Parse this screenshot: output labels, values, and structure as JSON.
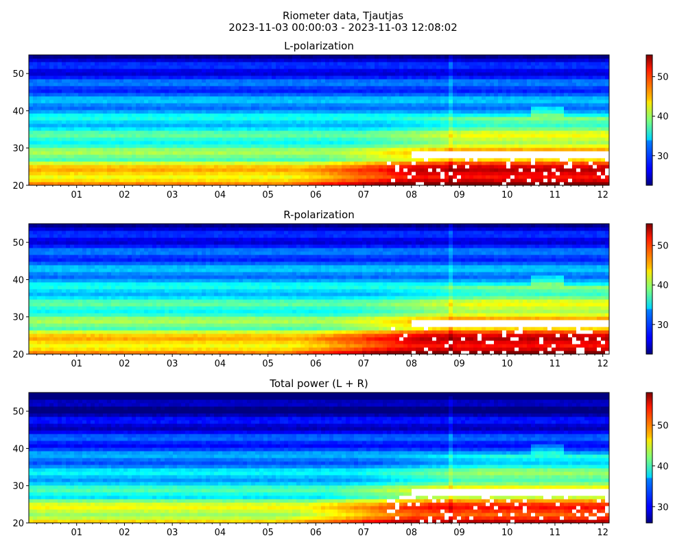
{
  "figure": {
    "title_line1": "Riometer data, Tjautjas",
    "title_line2": "2023-11-03 00:00:03 - 2023-11-03 12:08:02"
  },
  "chart_data": [
    {
      "type": "heatmap",
      "title": "L-polarization",
      "xlabel": "",
      "ylabel": "",
      "xlim": [
        0,
        12.134
      ],
      "ylim": [
        20,
        55
      ],
      "x_ticks": [
        1,
        2,
        3,
        4,
        5,
        6,
        7,
        8,
        9,
        10,
        11,
        12
      ],
      "x_tick_labels": [
        "01",
        "02",
        "03",
        "04",
        "05",
        "06",
        "07",
        "08",
        "09",
        "10",
        "11",
        "12"
      ],
      "y_ticks": [
        20,
        30,
        40,
        50
      ],
      "y_tick_labels": [
        "20",
        "30",
        "40",
        "50"
      ],
      "colormap": "jet",
      "clim": [
        22.5,
        55.5
      ],
      "colorbar_ticks": [
        30,
        40,
        50
      ],
      "colorbar_tick_labels": [
        "30",
        "40",
        "50"
      ]
    },
    {
      "type": "heatmap",
      "title": "R-polarization",
      "xlabel": "",
      "ylabel": "",
      "xlim": [
        0,
        12.134
      ],
      "ylim": [
        20,
        55
      ],
      "x_ticks": [
        1,
        2,
        3,
        4,
        5,
        6,
        7,
        8,
        9,
        10,
        11,
        12
      ],
      "x_tick_labels": [
        "01",
        "02",
        "03",
        "04",
        "05",
        "06",
        "07",
        "08",
        "09",
        "10",
        "11",
        "12"
      ],
      "y_ticks": [
        20,
        30,
        40,
        50
      ],
      "y_tick_labels": [
        "20",
        "30",
        "40",
        "50"
      ],
      "colormap": "jet",
      "clim": [
        22.5,
        55.5
      ],
      "colorbar_ticks": [
        30,
        40,
        50
      ],
      "colorbar_tick_labels": [
        "30",
        "40",
        "50"
      ]
    },
    {
      "type": "heatmap",
      "title": "Total power (L + R)",
      "xlabel": "",
      "ylabel": "",
      "xlim": [
        0,
        12.134
      ],
      "ylim": [
        20,
        55
      ],
      "x_ticks": [
        1,
        2,
        3,
        4,
        5,
        6,
        7,
        8,
        9,
        10,
        11,
        12
      ],
      "x_tick_labels": [
        "01",
        "02",
        "03",
        "04",
        "05",
        "06",
        "07",
        "08",
        "09",
        "10",
        "11",
        "12"
      ],
      "y_ticks": [
        20,
        30,
        40,
        50
      ],
      "y_tick_labels": [
        "20",
        "30",
        "40",
        "50"
      ],
      "colormap": "jet",
      "clim": [
        26,
        58
      ],
      "colorbar_ticks": [
        30,
        40,
        50
      ],
      "colorbar_tick_labels": [
        "30",
        "40",
        "50"
      ]
    }
  ]
}
